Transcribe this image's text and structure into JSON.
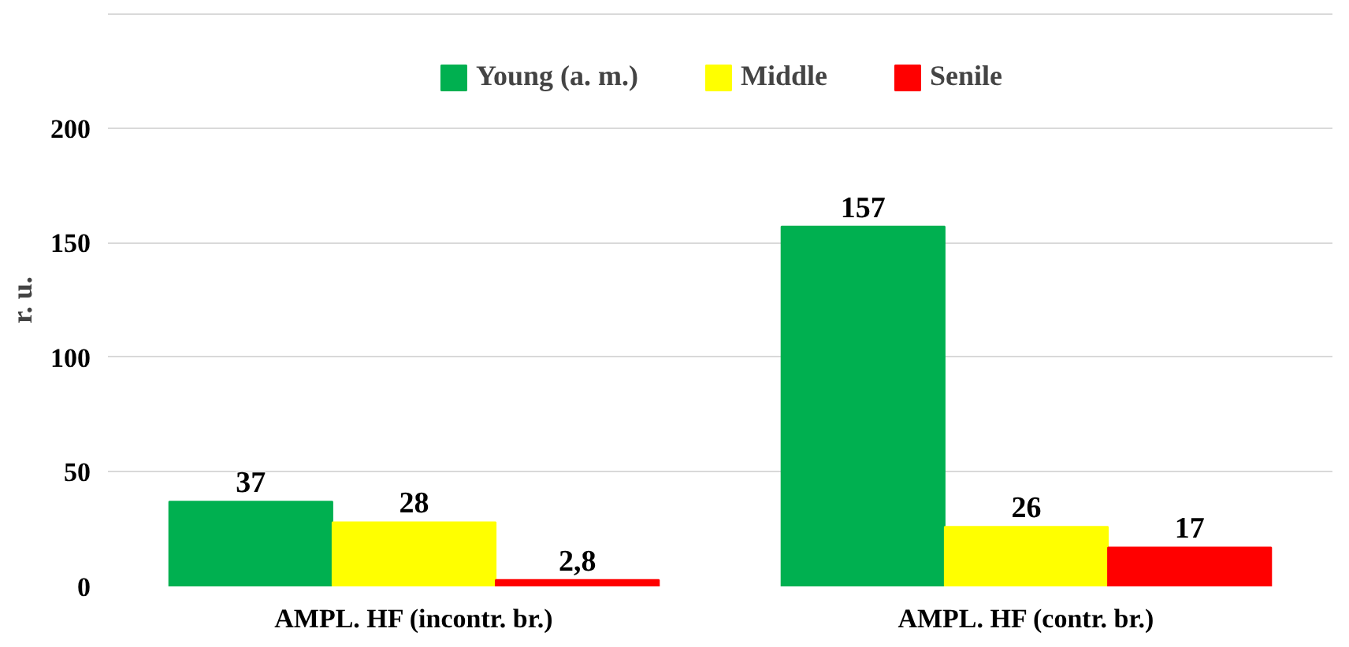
{
  "chart_data": {
    "type": "bar",
    "ylabel": "r. u.",
    "categories": [
      "AMPL. HF (incontr. br.)",
      "AMPL. HF (contr. br.)"
    ],
    "series": [
      {
        "name": "Young (a. m.)",
        "color": "#00b050",
        "values": [
          37,
          157
        ],
        "value_labels": [
          "37",
          "157"
        ]
      },
      {
        "name": "Middle",
        "color": "#ffff00",
        "values": [
          28,
          26
        ],
        "value_labels": [
          "28",
          "26"
        ]
      },
      {
        "name": "Senile",
        "color": "#ff0000",
        "values": [
          2.8,
          17
        ],
        "value_labels": [
          "2,8",
          "17"
        ]
      }
    ],
    "ylim": [
      0,
      250
    ],
    "yticks": [
      0,
      50,
      100,
      150,
      200,
      {
        "value": 250,
        "label": null
      }
    ],
    "grid": "y",
    "legend": "top"
  }
}
